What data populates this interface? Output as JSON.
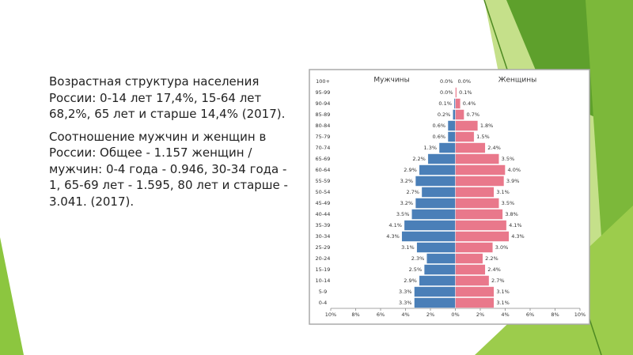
{
  "paragraphs": [
    "Возрастная структура населения России: 0-14 лет 17,4%, 15-64 лет 68,2%, 65 лет и старше 14,4% (2017).",
    "Соотношение мужчин и женщин в России: Общее - 1.157 женщин / мужчин: 0-4 года - 0.946, 30-34 года - 1, 65-69 лет - 1.595, 80 лет и старше - 3.041. (2017)."
  ],
  "chart_data": {
    "type": "pyramid",
    "categories": [
      "100+",
      "95-99",
      "90-94",
      "85-89",
      "80-84",
      "75-79",
      "70-74",
      "65-69",
      "60-64",
      "55-59",
      "50-54",
      "45-49",
      "40-44",
      "35-39",
      "30-34",
      "25-29",
      "20-24",
      "15-19",
      "10-14",
      "5-9",
      "0-4"
    ],
    "series": [
      {
        "name": "Мужчины",
        "color": "#4a7fb8",
        "side": "left",
        "values": [
          0.0,
          0.0,
          0.1,
          0.2,
          0.6,
          0.6,
          1.3,
          2.2,
          2.9,
          3.2,
          2.7,
          3.2,
          3.5,
          4.1,
          4.3,
          3.1,
          2.3,
          2.5,
          2.9,
          3.3,
          3.3
        ],
        "value_labels": [
          "0.0%",
          "0.0%",
          "0.1%",
          "0.2%",
          "0.6%",
          "0.6%",
          "1.3%",
          "2.2%",
          "2.9%",
          "3.2%",
          "2.7%",
          "3.2%",
          "3.5%",
          "4.1%",
          "4.3%",
          "3.1%",
          "2.3%",
          "2.5%",
          "2.9%",
          "3.3%",
          "3.3%"
        ]
      },
      {
        "name": "Женщины",
        "color": "#e9788b",
        "side": "right",
        "values": [
          0.0,
          0.1,
          0.4,
          0.7,
          1.8,
          1.5,
          2.4,
          3.5,
          4.0,
          3.9,
          3.1,
          3.5,
          3.8,
          4.1,
          4.3,
          3.0,
          2.2,
          2.4,
          2.7,
          3.1,
          3.1
        ],
        "value_labels": [
          "0.0%",
          "0.1%",
          "0.4%",
          "0.7%",
          "1.8%",
          "1.5%",
          "2.4%",
          "3.5%",
          "4.0%",
          "3.9%",
          "3.1%",
          "3.5%",
          "3.8%",
          "4.1%",
          "4.3%",
          "3.0%",
          "2.2%",
          "2.4%",
          "2.7%",
          "3.1%",
          "3.1%"
        ]
      }
    ],
    "xlim": [
      -10,
      10
    ],
    "xticks": [
      {
        "value": -10,
        "label": "10%"
      },
      {
        "value": -8,
        "label": "8%"
      },
      {
        "value": -6,
        "label": "6%"
      },
      {
        "value": -4,
        "label": "4%"
      },
      {
        "value": -2,
        "label": "2%"
      },
      {
        "value": 0,
        "label": "0%"
      },
      {
        "value": 2,
        "label": "2%"
      },
      {
        "value": 4,
        "label": "4%"
      },
      {
        "value": 6,
        "label": "6%"
      },
      {
        "value": 8,
        "label": "8%"
      },
      {
        "value": 10,
        "label": "10%"
      }
    ]
  }
}
